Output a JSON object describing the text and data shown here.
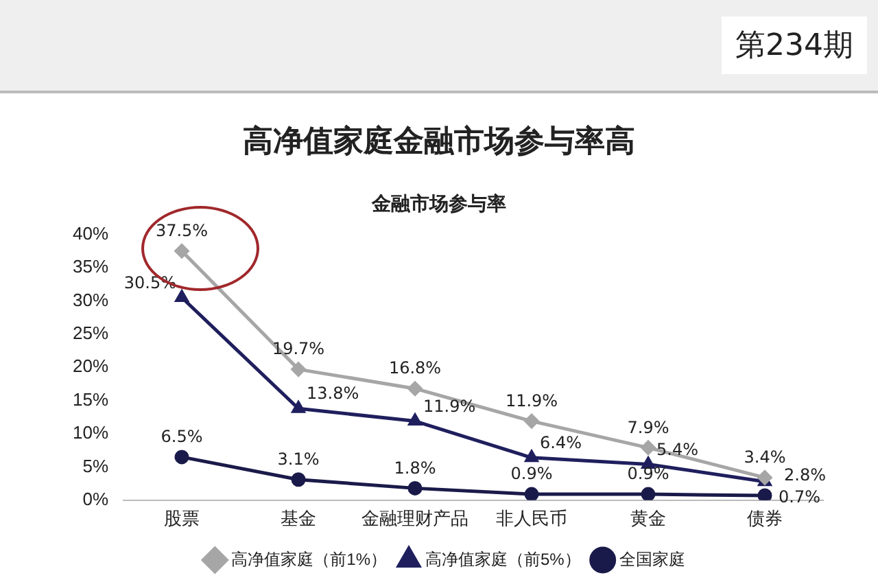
{
  "chart_data": {
    "type": "line",
    "title": "高净值家庭金融市场参与率高",
    "subtitle": "金融市场参与率",
    "annotations": [
      "第234期"
    ],
    "categories": [
      "股票",
      "基金",
      "金融理财产品",
      "非人民币",
      "黄金",
      "债券"
    ],
    "ylim": [
      0,
      40
    ],
    "yticks": [
      {
        "value": 0,
        "label": "0%"
      },
      {
        "value": 5,
        "label": "5%"
      },
      {
        "value": 10,
        "label": "10%"
      },
      {
        "value": 15,
        "label": "15%"
      },
      {
        "value": 20,
        "label": "20%"
      },
      {
        "value": 25,
        "label": "25%"
      },
      {
        "value": 30,
        "label": "30%"
      },
      {
        "value": 35,
        "label": "35%"
      },
      {
        "value": 40,
        "label": "40%"
      }
    ],
    "grid": false,
    "legend": "bottom",
    "series": [
      {
        "name": "高净值家庭（前1%）",
        "color": "#a6a6a6",
        "marker": "diamond",
        "values": [
          37.5,
          19.7,
          16.8,
          11.9,
          7.9,
          3.4
        ],
        "value_labels": [
          "37.5%",
          "19.7%",
          "16.8%",
          "11.9%",
          "7.9%",
          "3.4%"
        ]
      },
      {
        "name": "高净值家庭（前5%）",
        "color": "#1f1f5e",
        "marker": "triangle",
        "values": [
          30.5,
          13.8,
          11.9,
          6.4,
          5.4,
          2.8
        ],
        "value_labels": [
          "30.5%",
          "13.8%",
          "11.9%",
          "6.4%",
          "5.4%",
          "2.8%"
        ]
      },
      {
        "name": "全国家庭",
        "color": "#1a1a4a",
        "marker": "circle",
        "values": [
          6.5,
          3.1,
          1.8,
          0.9,
          0.9,
          0.7
        ],
        "value_labels": [
          "6.5%",
          "3.1%",
          "1.8%",
          "0.9%",
          "0.9%",
          "0.7%"
        ]
      }
    ]
  }
}
